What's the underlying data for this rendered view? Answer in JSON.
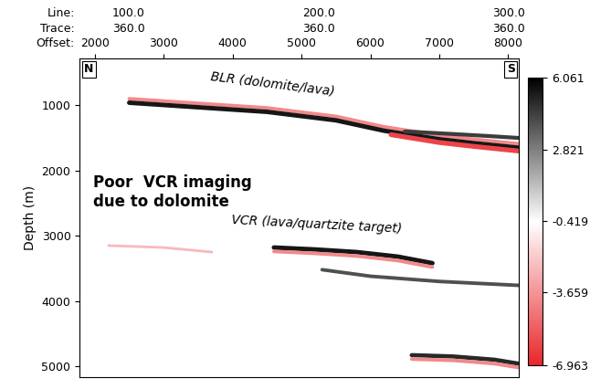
{
  "chart_data": {
    "type": "seismic",
    "ylabel": "Depth (m)",
    "xlabel": "Offset:",
    "xlim": [
      1780,
      8160
    ],
    "xticks": [
      2000,
      3000,
      4000,
      5000,
      6000,
      7000,
      8000
    ],
    "ylim": [
      5170,
      280
    ],
    "yticks": [
      1000,
      2000,
      3000,
      4000,
      5000
    ],
    "top_rows": [
      {
        "label": "Line:",
        "ticks": [
          {
            "value": 2490,
            "label": "100.0"
          },
          {
            "value": 5250,
            "label": "200.0"
          },
          {
            "value": 8010,
            "label": "300.0"
          }
        ]
      },
      {
        "label": "Trace:",
        "ticks": [
          {
            "value": 2490,
            "label": "360.0"
          },
          {
            "value": 5250,
            "label": "360.0"
          },
          {
            "value": 8010,
            "label": "360.0"
          }
        ]
      }
    ],
    "corner_labels": [
      "N",
      "S"
    ],
    "annotations": [
      "BLR (dolomite/lava)",
      "VCR (lava/quartzite target)",
      "Poor  VCR imaging\ndue to dolomite"
    ],
    "colorbar": {
      "range": [
        -6.963,
        6.061
      ],
      "ticks": [
        -6.963,
        -3.659,
        -0.419,
        2.821,
        6.061
      ],
      "colors": [
        "#e8262b",
        "#ffffff",
        "#000000"
      ]
    },
    "series": [
      {
        "x": [
          2500,
          3500,
          4500,
          5500,
          6200,
          7000,
          7500,
          8150
        ],
        "values": [
          900,
          970,
          1040,
          1170,
          1330,
          1460,
          1520,
          1590
        ],
        "amplitude": -4.0
      },
      {
        "x": [
          2500,
          3500,
          4500,
          5500,
          6200,
          7000,
          7500,
          8150
        ],
        "values": [
          960,
          1030,
          1100,
          1230,
          1390,
          1520,
          1580,
          1650
        ],
        "amplitude": 5.5
      },
      {
        "x": [
          6300,
          7000,
          7500,
          8150
        ],
        "values": [
          1450,
          1570,
          1630,
          1700
        ],
        "amplitude": -6.0
      },
      {
        "x": [
          6500,
          7200,
          7700,
          8150
        ],
        "values": [
          1400,
          1440,
          1470,
          1500
        ],
        "amplitude": 4.5
      },
      {
        "x": [
          4600,
          5200,
          5800,
          6400,
          6900
        ],
        "values": [
          3180,
          3210,
          3250,
          3320,
          3420
        ],
        "amplitude": 5.5
      },
      {
        "x": [
          4600,
          5200,
          5800,
          6400,
          6900
        ],
        "values": [
          3240,
          3270,
          3310,
          3380,
          3480
        ],
        "amplitude": -4.0
      },
      {
        "x": [
          5300,
          6000,
          7000,
          8150
        ],
        "values": [
          3520,
          3620,
          3700,
          3760
        ],
        "amplitude": 4.0
      },
      {
        "x": [
          2200,
          3000,
          3700
        ],
        "values": [
          3150,
          3180,
          3250
        ],
        "amplitude": -2.5
      },
      {
        "x": [
          6600,
          7200,
          7800,
          8150
        ],
        "values": [
          4830,
          4850,
          4900,
          4960
        ],
        "amplitude": 5.0
      },
      {
        "x": [
          6600,
          7200,
          7800,
          8150
        ],
        "values": [
          4890,
          4910,
          4960,
          5020
        ],
        "amplitude": -4.0
      }
    ]
  }
}
